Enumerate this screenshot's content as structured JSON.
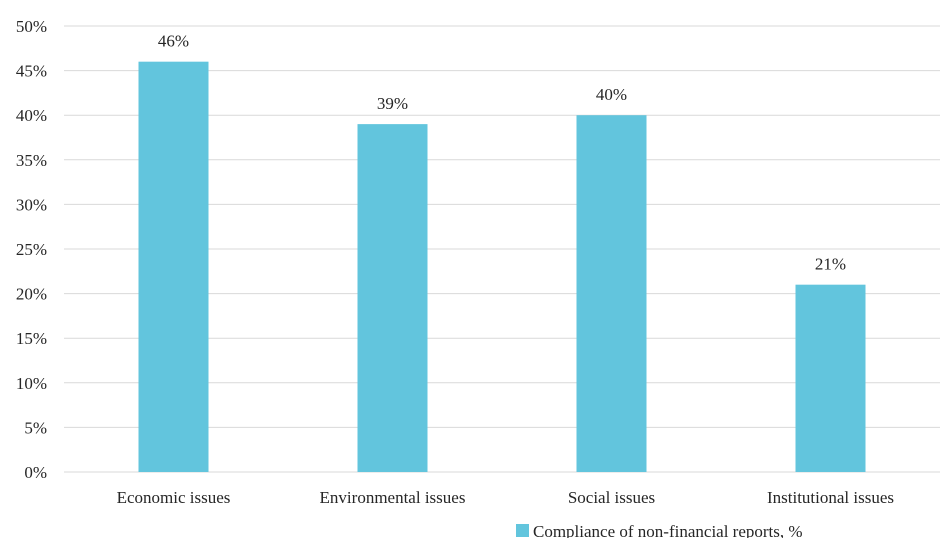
{
  "chart_data": {
    "type": "bar",
    "categories": [
      "Economic issues",
      "Environmental issues",
      "Social issues",
      "Institutional issues"
    ],
    "series": [
      {
        "name": "Compliance of non-financial reports, %",
        "values": [
          46,
          39,
          40,
          21
        ],
        "color": "#62C5DD"
      }
    ],
    "data_labels": [
      "46%",
      "39%",
      "40%",
      "21%"
    ],
    "ylim": [
      0,
      50
    ],
    "yticks": [
      "0%",
      "5%",
      "10%",
      "15%",
      "20%",
      "25%",
      "30%",
      "35%",
      "40%",
      "45%",
      "50%"
    ],
    "title": "",
    "xlabel": "",
    "ylabel": "",
    "grid": true,
    "legend_position": "bottom-right",
    "colors": {
      "bar": "#62C5DD",
      "grid": "#D9D9D9",
      "text": "#262626"
    }
  }
}
